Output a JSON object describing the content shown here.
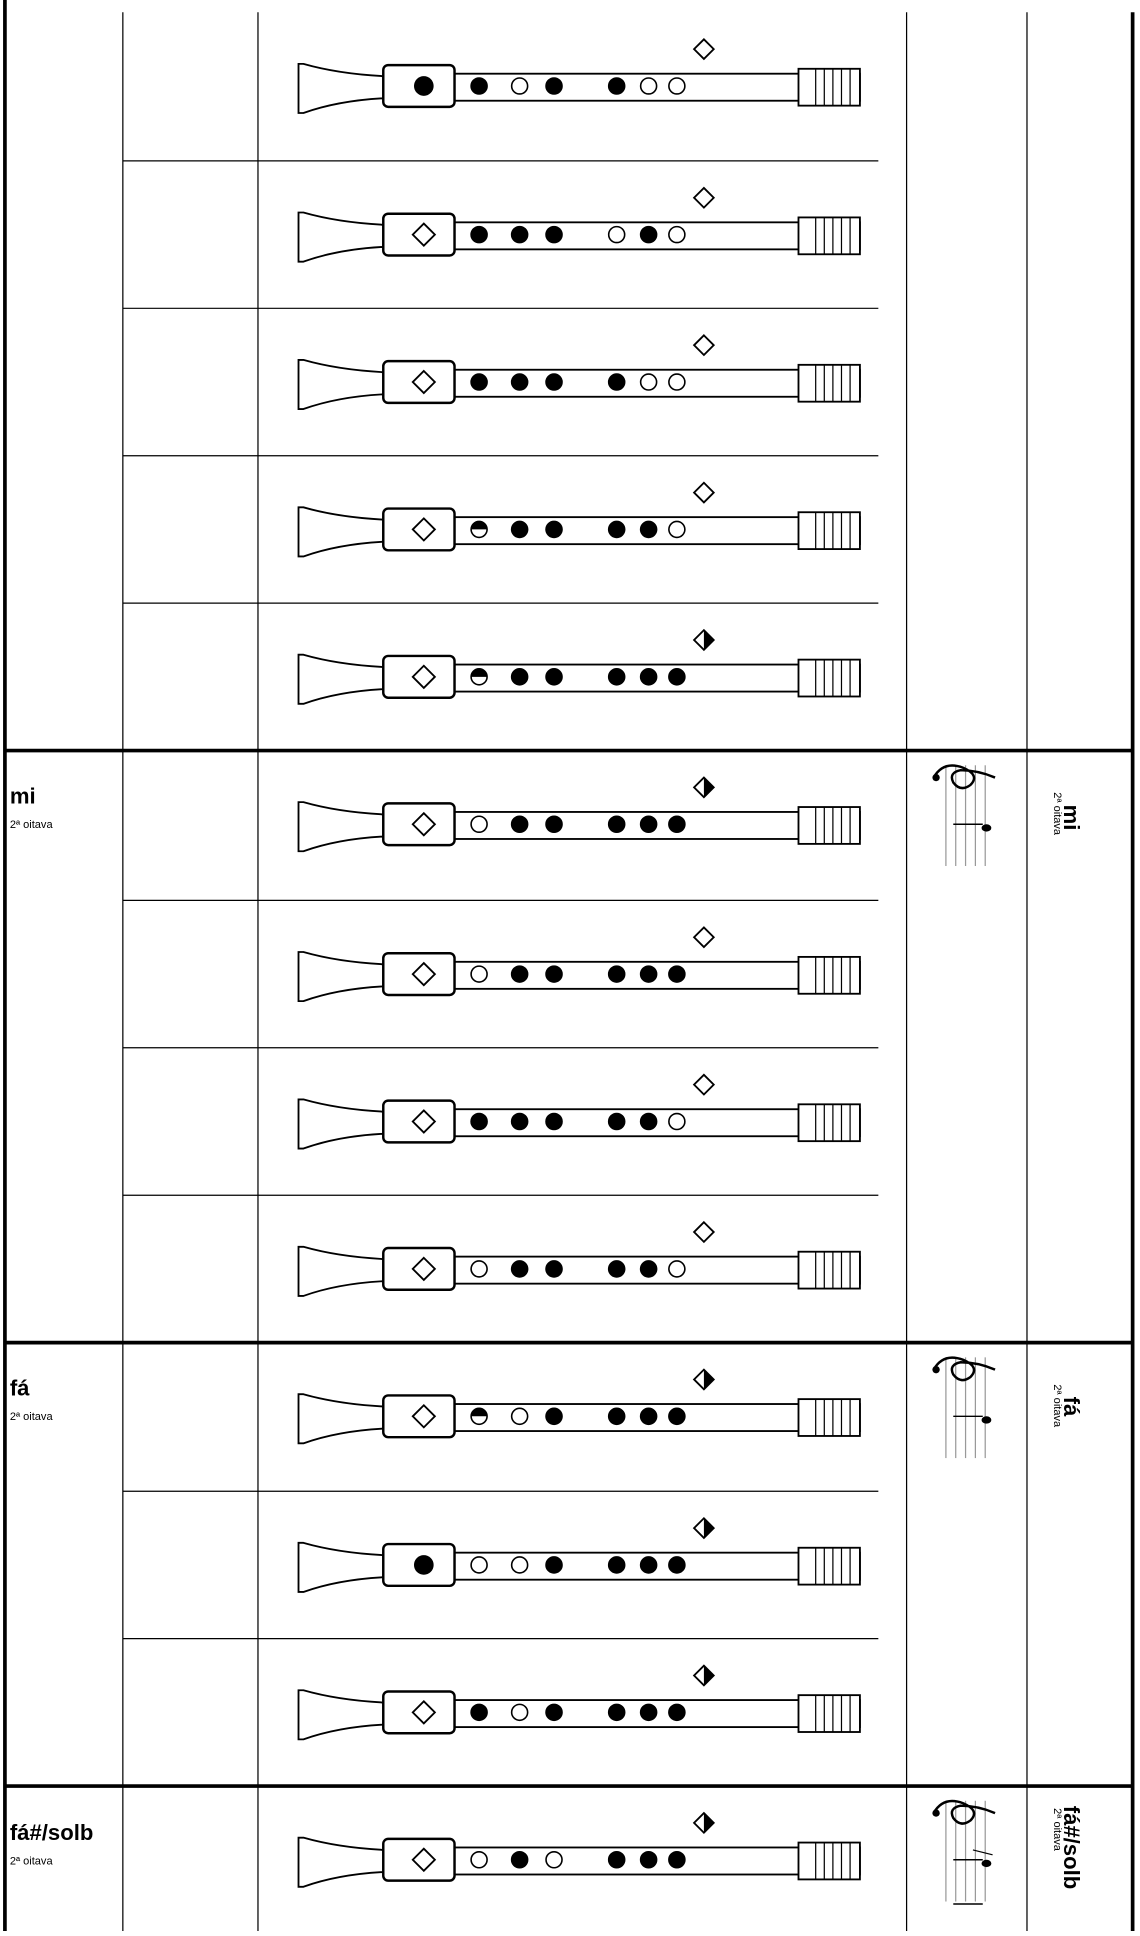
{
  "groups": [
    {
      "note": "mi",
      "octave": "2ª oitava"
    },
    {
      "note": "fá",
      "octave": "2ª oitava"
    },
    {
      "note": "fá#/solb",
      "octave": "2ª oitava"
    }
  ]
}
